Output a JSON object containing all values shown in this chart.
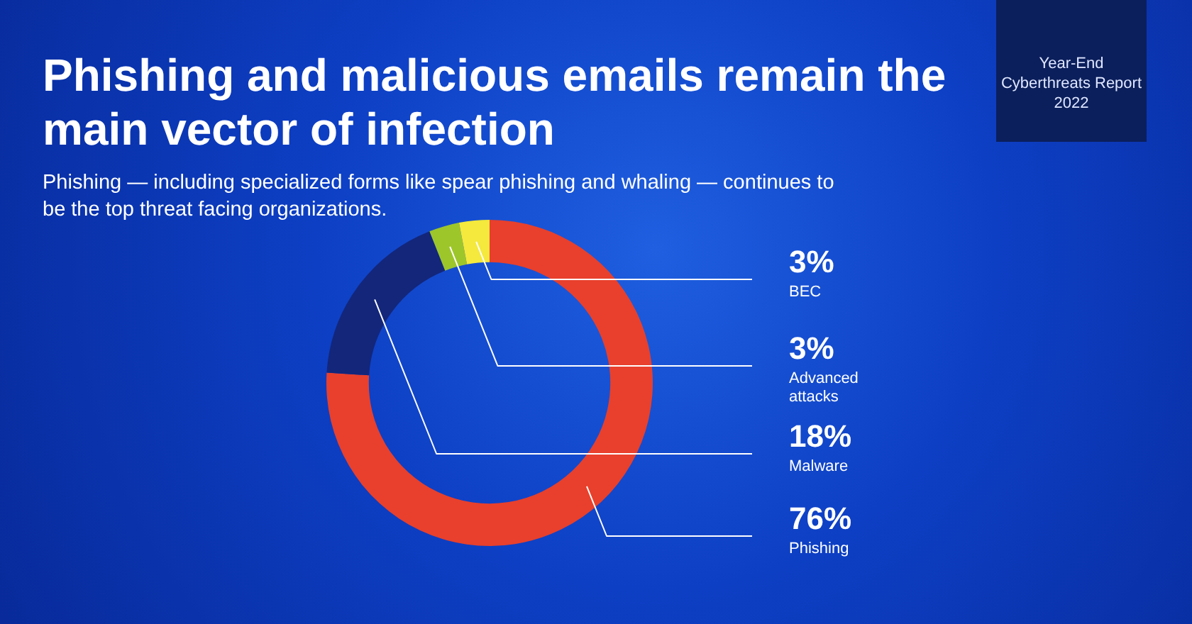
{
  "chart_data": {
    "type": "donut",
    "title": "Phishing and malicious emails remain the main vector of infection",
    "subtitle": "Phishing — including specialized forms like spear phishing and whaling — continues to be the top threat facing organizations.",
    "categories": [
      "Phishing",
      "Malware",
      "Advanced attacks",
      "BEC"
    ],
    "values": [
      76,
      18,
      3,
      3
    ],
    "colors": [
      "#e8402c",
      "#13267a",
      "#9dc62b",
      "#f4e93c"
    ],
    "value_labels": [
      "76%",
      "18%",
      "3%",
      "3%"
    ],
    "annotations": [
      "Year-End Cyberthreats Report 2022"
    ]
  }
}
